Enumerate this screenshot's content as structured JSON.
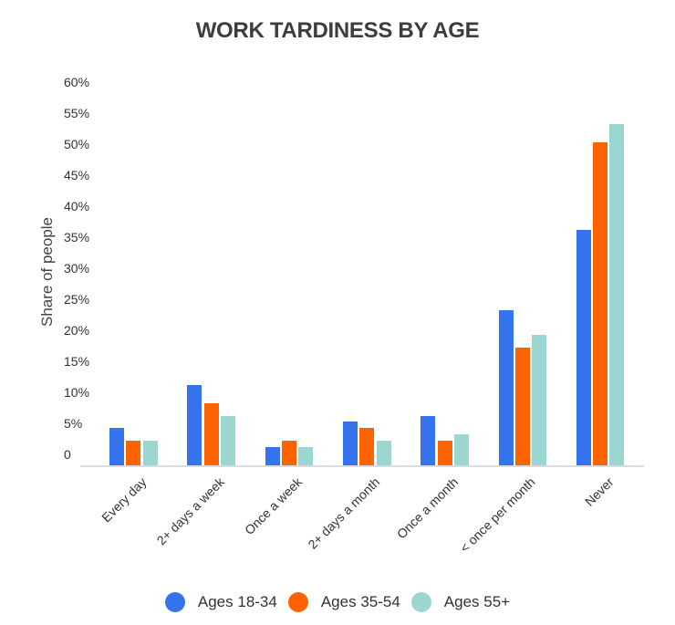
{
  "chart_data": {
    "type": "bar",
    "title": "WORK TARDINESS BY AGE",
    "xlabel": "",
    "ylabel": "Share of people",
    "ylim": [
      0,
      60
    ],
    "yticks": [
      "0",
      "5%",
      "10%",
      "15%",
      "20%",
      "25%",
      "30%",
      "35%",
      "40%",
      "45%",
      "50%",
      "55%",
      "60%"
    ],
    "grid": false,
    "legend_position": "bottom",
    "categories": [
      "Every day",
      "2+ days a week",
      "Once a week",
      "2+ days a month",
      "Once a month",
      "< once per month",
      "Never"
    ],
    "series": [
      {
        "name": "Ages 18-34",
        "color": "#3574ee",
        "values": [
          6,
          13,
          3,
          7,
          8,
          25,
          38
        ]
      },
      {
        "name": "Ages 35-54",
        "color": "#ff6200",
        "values": [
          4,
          10,
          4,
          6,
          4,
          19,
          52
        ]
      },
      {
        "name": "Ages 55+",
        "color": "#9bd6d0",
        "values": [
          4,
          8,
          3,
          4,
          5,
          21,
          55
        ]
      }
    ]
  }
}
